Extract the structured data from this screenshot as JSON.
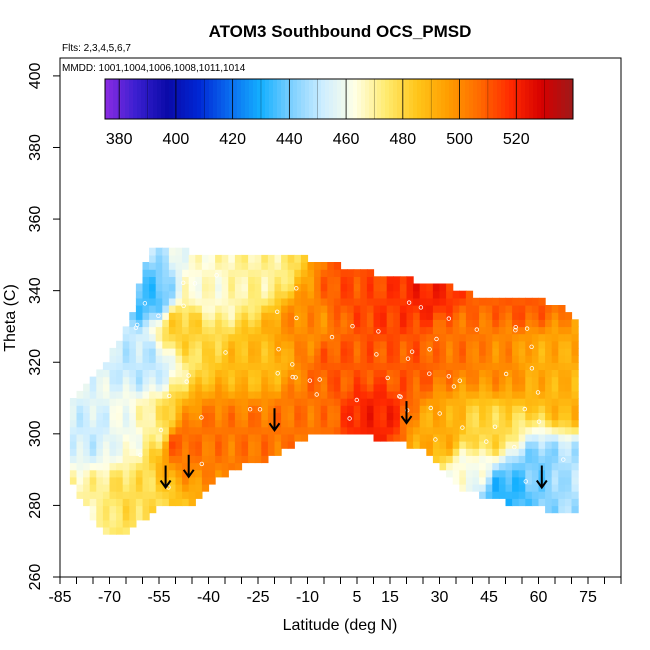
{
  "chart_data": {
    "type": "heatmap",
    "title": "ATOM3 Southbound OCS_PMSD",
    "subtitle_lines": [
      "Flts: 2,3,4,5,6,7",
      "MMDD: 1001,1004,1006,1008,1011,1014"
    ],
    "xlabel": "Latitude (deg N)",
    "ylabel": "Theta (C)",
    "xlim": [
      -85,
      85
    ],
    "ylim": [
      260,
      405
    ],
    "x_ticks": [
      -85,
      -70,
      -55,
      -40,
      -25,
      -10,
      5,
      15,
      30,
      45,
      60,
      75
    ],
    "x_tick_labels": [
      "-85",
      "-70",
      "-55",
      "-40",
      "-25",
      "-10",
      "5",
      "15",
      "30",
      "45",
      "60",
      "75"
    ],
    "y_ticks": [
      260,
      280,
      300,
      320,
      340,
      360,
      380,
      400
    ],
    "y_tick_labels": [
      "260",
      "280",
      "300",
      "320",
      "340",
      "360",
      "380",
      "400"
    ],
    "colorbar": {
      "ticks": [
        380,
        400,
        420,
        440,
        460,
        480,
        500,
        520
      ],
      "tick_labels": [
        "380",
        "400",
        "420",
        "440",
        "460",
        "480",
        "500",
        "520"
      ],
      "range": [
        375,
        540
      ],
      "colors": [
        "#8b2be2",
        "#3a1fd0",
        "#0a0aa8",
        "#0026d4",
        "#0a6cf0",
        "#14b0ff",
        "#7fd0ff",
        "#cfeeff",
        "#ffffe6",
        "#ffeb70",
        "#ffc61a",
        "#ff9d00",
        "#ff6a00",
        "#ff2a00",
        "#d60000",
        "#9e1a1a"
      ]
    },
    "field_control_points": [
      {
        "lat": -75,
        "theta": 280,
        "value": 470
      },
      {
        "lat": -75,
        "theta": 300,
        "value": 452
      },
      {
        "lat": -65,
        "theta": 282,
        "value": 478
      },
      {
        "lat": -65,
        "theta": 300,
        "value": 460
      },
      {
        "lat": -60,
        "theta": 320,
        "value": 450
      },
      {
        "lat": -58,
        "theta": 338,
        "value": 435
      },
      {
        "lat": -55,
        "theta": 300,
        "value": 470
      },
      {
        "lat": -50,
        "theta": 298,
        "value": 510
      },
      {
        "lat": -48,
        "theta": 330,
        "value": 482
      },
      {
        "lat": -40,
        "theta": 300,
        "value": 505
      },
      {
        "lat": -40,
        "theta": 340,
        "value": 465
      },
      {
        "lat": -25,
        "theta": 300,
        "value": 505
      },
      {
        "lat": -25,
        "theta": 320,
        "value": 488
      },
      {
        "lat": -25,
        "theta": 345,
        "value": 470
      },
      {
        "lat": -10,
        "theta": 305,
        "value": 505
      },
      {
        "lat": -10,
        "theta": 330,
        "value": 500
      },
      {
        "lat": 0,
        "theta": 320,
        "value": 510
      },
      {
        "lat": 5,
        "theta": 340,
        "value": 512
      },
      {
        "lat": 10,
        "theta": 305,
        "value": 520
      },
      {
        "lat": 15,
        "theta": 335,
        "value": 515
      },
      {
        "lat": 20,
        "theta": 320,
        "value": 510
      },
      {
        "lat": 25,
        "theta": 340,
        "value": 520
      },
      {
        "lat": 30,
        "theta": 300,
        "value": 492
      },
      {
        "lat": 35,
        "theta": 325,
        "value": 505
      },
      {
        "lat": 40,
        "theta": 290,
        "value": 462
      },
      {
        "lat": 45,
        "theta": 300,
        "value": 480
      },
      {
        "lat": 50,
        "theta": 285,
        "value": 432
      },
      {
        "lat": 50,
        "theta": 320,
        "value": 500
      },
      {
        "lat": 55,
        "theta": 338,
        "value": 510
      },
      {
        "lat": 60,
        "theta": 290,
        "value": 440
      },
      {
        "lat": 60,
        "theta": 320,
        "value": 492
      },
      {
        "lat": 70,
        "theta": 290,
        "value": 448
      },
      {
        "lat": 70,
        "theta": 310,
        "value": 490
      }
    ],
    "arrows": [
      {
        "lat": -53,
        "theta": 285
      },
      {
        "lat": -46,
        "theta": 288
      },
      {
        "lat": -20,
        "theta": 301
      },
      {
        "lat": 20,
        "theta": 303
      },
      {
        "lat": 61,
        "theta": 285
      }
    ],
    "grid": false,
    "legend": "colorbar-top-inside"
  }
}
